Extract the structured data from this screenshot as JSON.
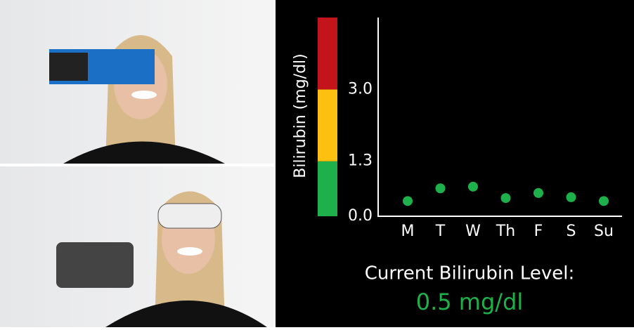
{
  "chart_data": {
    "type": "scatter",
    "y_label": "Bilirubin (mg/dl)",
    "categories": [
      "M",
      "T",
      "W",
      "Th",
      "F",
      "S",
      "Su"
    ],
    "values": [
      0.36,
      0.66,
      0.7,
      0.43,
      0.55,
      0.45,
      0.36
    ],
    "color": "#1eb14b",
    "ylim": [
      0,
      4.7
    ],
    "yticks": [
      {
        "value": 0,
        "label": "0.0"
      },
      1.3,
      {
        "value": 3,
        "label": "3.0"
      }
    ],
    "bands": [
      {
        "from": 0,
        "to": 1.3,
        "color": "#1eb14b"
      },
      {
        "from": 1.3,
        "to": 3,
        "color": "#fdbf10"
      },
      {
        "from": 3,
        "to": 4.7,
        "color": "#c3141b"
      }
    ],
    "caption": "Current Bilirubin Level:",
    "current_value": "0.5 mg/dl"
  }
}
